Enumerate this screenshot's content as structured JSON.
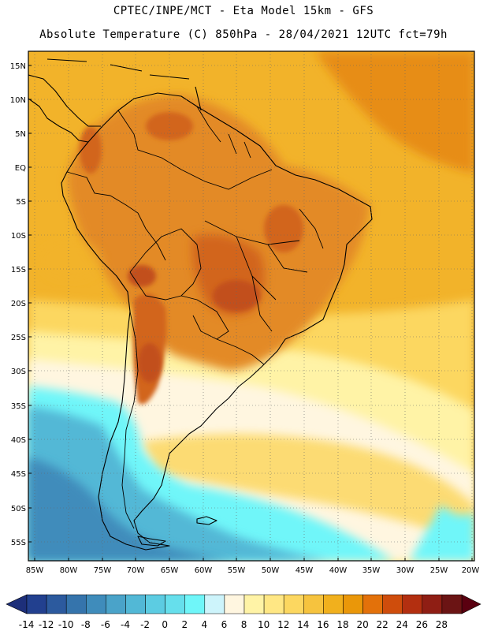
{
  "header": {
    "line1": "CPTEC/INPE/MCT -  Eta Model 15km - GFS",
    "line2": "Absolute Temperature (C) 850hPa - 28/04/2021 12UTC fct=79h"
  },
  "axes": {
    "lat_labels": [
      "15N",
      "10N",
      "5N",
      "EQ",
      "5S",
      "10S",
      "15S",
      "20S",
      "25S",
      "30S",
      "35S",
      "40S",
      "45S",
      "50S",
      "55S"
    ],
    "lon_labels": [
      "85W",
      "80W",
      "75W",
      "70W",
      "65W",
      "60W",
      "55W",
      "50W",
      "45W",
      "40W",
      "35W",
      "30W",
      "25W",
      "20W"
    ]
  },
  "colorbar": {
    "labels": [
      "-14",
      "-12",
      "-10",
      "-8",
      "-6",
      "-4",
      "-2",
      "0",
      "2",
      "4",
      "6",
      "8",
      "10",
      "12",
      "14",
      "16",
      "18",
      "20",
      "22",
      "24",
      "26",
      "28"
    ],
    "colors": [
      "#22408f",
      "#2c5a9e",
      "#3574ac",
      "#3f8cbb",
      "#4aa3c9",
      "#52b8d6",
      "#5ccce2",
      "#66dfec",
      "#6ff6f9",
      "#cdf4fb",
      "#fff6e0",
      "#fff3a6",
      "#ffe784",
      "#fcd760",
      "#f6c33e",
      "#f1b01d",
      "#ea9709",
      "#e3710a",
      "#cf4d0c",
      "#b32f10",
      "#8f1e14",
      "#6b1414"
    ],
    "under_color": "#1d2f7a",
    "over_color": "#5a0010"
  },
  "region_colors": {
    "ocean_tropical": "#f2b32a",
    "ocean_warm_east": "#e78d17",
    "land_warm": "#e38a25",
    "land_hot": "#d2651f",
    "hot_core": "#c24f1c",
    "subtropical_ocean": "#fcd760",
    "cool_band": "#fff3a6",
    "pale_band": "#fff6e0",
    "cold_cyan": "#6ff6f9",
    "cold_blue": "#52b8d6",
    "coldest_blue": "#3f8cbb"
  }
}
